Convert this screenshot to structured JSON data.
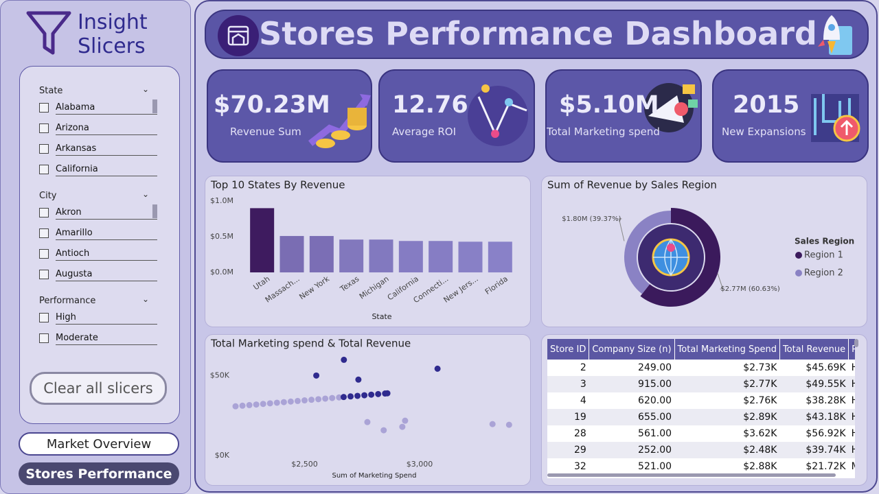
{
  "sidebar": {
    "title": "Insight Slicers",
    "slicers": [
      {
        "label": "State",
        "items": [
          "Alabama",
          "Arizona",
          "Arkansas",
          "California"
        ]
      },
      {
        "label": "City",
        "items": [
          "Akron",
          "Amarillo",
          "Antioch",
          "Augusta"
        ]
      },
      {
        "label": "Performance",
        "items": [
          "High",
          "Moderate"
        ]
      }
    ],
    "clear_button": "Clear all slicers",
    "nav": [
      "Market Overview",
      "Stores Performance"
    ]
  },
  "header": {
    "title": "Stores Performance Dashboard"
  },
  "kpis": [
    {
      "value": "$70.23M",
      "label": "Revenue Sum"
    },
    {
      "value": "12.76",
      "label": "Average ROI"
    },
    {
      "value": "$5.10M",
      "label": "Total Marketing spend"
    },
    {
      "value": "2015",
      "label": "New Expansions"
    }
  ],
  "chart_data": [
    {
      "type": "bar",
      "title": "Top 10 States By Revenue",
      "xlabel": "State",
      "categories": [
        "Utah",
        "Massach...",
        "New York",
        "Texas",
        "Michigan",
        "California",
        "Connecti...",
        "New Jers...",
        "Florida"
      ],
      "values": [
        900000,
        510000,
        510000,
        460000,
        460000,
        440000,
        440000,
        430000,
        430000
      ],
      "colors": [
        "#3e1b5f",
        "#7a6db3",
        "#7b6eb5",
        "#8278bd",
        "#8279bf",
        "#857cc3",
        "#867dc4",
        "#8880c6",
        "#8981c8"
      ],
      "ylim": [
        0,
        1000000
      ],
      "yticks": [
        {
          "value": 0,
          "label": "$0.0M"
        },
        {
          "value": 500000,
          "label": "$0.5M"
        },
        {
          "value": 1000000,
          "label": "$1.0M"
        }
      ]
    },
    {
      "type": "pie",
      "title": "Sum of Revenue by Sales Region",
      "legend_title": "Sales Region",
      "categories": [
        "Region 1",
        "Region 2"
      ],
      "values": [
        2770000,
        1800000
      ],
      "value_labels": [
        "$2.77M (60.63%)",
        "$1.80M (39.37%)"
      ],
      "colors": [
        "#3b1a5c",
        "#8a82c4"
      ]
    },
    {
      "type": "scatter",
      "title": "Total Marketing spend & Total Revenue",
      "xlabel": "Sum of Marketing Spend",
      "xlim": [
        2200,
        3400
      ],
      "ylim": [
        0,
        60000
      ],
      "xticks": [
        {
          "value": 2500,
          "label": "$2,500"
        },
        {
          "value": 3000,
          "label": "$3,000"
        }
      ],
      "yticks": [
        {
          "value": 0,
          "label": "$0K"
        },
        {
          "value": 50000,
          "label": "$50K"
        }
      ],
      "series": [
        {
          "color": "#aaa3d6",
          "x": [
            2200,
            2230,
            2260,
            2290,
            2320,
            2350,
            2380,
            2410,
            2440,
            2470,
            2500,
            2530,
            2560,
            2590,
            2620,
            2650,
            2773,
            2844,
            2925,
            2937,
            3317,
            3389
          ],
          "values": [
            30800,
            31170,
            31540,
            31900,
            32270,
            32640,
            33010,
            33380,
            33750,
            34110,
            34480,
            34850,
            35220,
            35590,
            35950,
            36320,
            20940,
            15810,
            17950,
            21800,
            19660,
            19230
          ]
        },
        {
          "color": "#2f2a8e",
          "x": [
            2670,
            2700,
            2730,
            2760,
            2790,
            2820,
            2850,
            2860,
            2671,
            2551,
            2734,
            3078
          ],
          "values": [
            36570,
            36940,
            37300,
            37670,
            38040,
            38410,
            38780,
            38900,
            59830,
            50000,
            47440,
            54270
          ]
        }
      ]
    }
  ],
  "table": {
    "columns": [
      "Store ID",
      "Company Size (n)",
      "Total Marketing Spend",
      "Total Revenue",
      "Performance"
    ],
    "rows": [
      [
        "2",
        "249.00",
        "$2.73K",
        "$45.69K",
        "High"
      ],
      [
        "3",
        "915.00",
        "$2.77K",
        "$49.55K",
        "High"
      ],
      [
        "4",
        "620.00",
        "$2.76K",
        "$38.28K",
        "High"
      ],
      [
        "19",
        "655.00",
        "$2.89K",
        "$43.18K",
        "High"
      ],
      [
        "28",
        "561.00",
        "$3.62K",
        "$56.92K",
        "High"
      ],
      [
        "29",
        "252.00",
        "$2.48K",
        "$39.74K",
        "High"
      ],
      [
        "32",
        "521.00",
        "$2.88K",
        "$21.72K",
        "Moderate"
      ]
    ]
  }
}
